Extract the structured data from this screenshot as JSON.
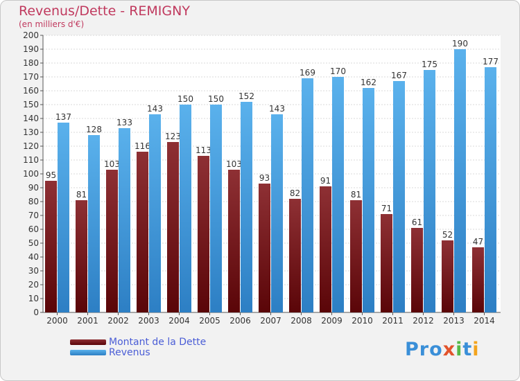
{
  "title": "Revenus/Dette - REMIGNY",
  "subtitle": "(en milliers d'€)",
  "legend": {
    "items": [
      {
        "label": "Montant de la Dette",
        "color": "#7a1e22"
      },
      {
        "label": "Revenus",
        "color": "#4aa3e6"
      }
    ]
  },
  "logo": {
    "text": "Proxiti",
    "colors": [
      "#3a8fd8",
      "#3a8fd8",
      "#3a8fd8",
      "#e2532b",
      "#56b947",
      "#3a8fd8",
      "#f3a41d"
    ]
  },
  "chart_data": {
    "type": "bar",
    "title": "Revenus/Dette - REMIGNY",
    "subtitle": "(en milliers d'€)",
    "categories": [
      "2000",
      "2001",
      "2002",
      "2003",
      "2004",
      "2005",
      "2006",
      "2007",
      "2008",
      "2009",
      "2010",
      "2011",
      "2012",
      "2013",
      "2014"
    ],
    "series": [
      {
        "name": "Montant de la Dette",
        "color": "#7a1e22",
        "values": [
          95,
          81,
          103,
          116,
          123,
          113,
          103,
          93,
          82,
          91,
          81,
          71,
          61,
          52,
          47
        ]
      },
      {
        "name": "Revenus",
        "color": "#4aa3e6",
        "values": [
          137,
          128,
          133,
          143,
          150,
          150,
          152,
          143,
          169,
          170,
          162,
          167,
          175,
          190,
          177
        ]
      }
    ],
    "ylim": [
      0,
      200
    ],
    "yticks": [
      0,
      10,
      20,
      30,
      40,
      50,
      60,
      70,
      80,
      90,
      100,
      110,
      120,
      130,
      140,
      150,
      160,
      170,
      180,
      190,
      200
    ],
    "grid": true,
    "legend_position": "bottom-left"
  }
}
